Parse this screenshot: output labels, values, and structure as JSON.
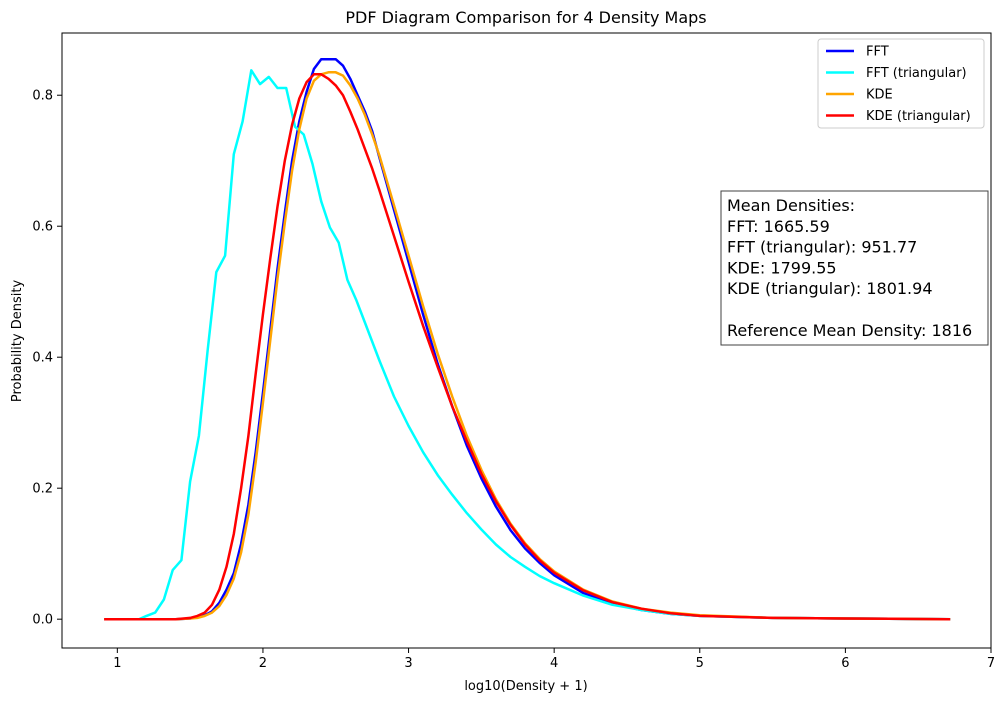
{
  "chart_data": {
    "type": "line",
    "title": "PDF Diagram Comparison for 4 Density Maps",
    "xlabel": "log10(Density + 1)",
    "ylabel": "Probability Density",
    "xlim": [
      0.62,
      7.0
    ],
    "ylim": [
      -0.044,
      0.895
    ],
    "xticks": [
      1,
      2,
      3,
      4,
      5,
      6,
      7
    ],
    "yticks": [
      0.0,
      0.2,
      0.4,
      0.6,
      0.8
    ],
    "ytick_labels": [
      "0.0",
      "0.2",
      "0.4",
      "0.6",
      "0.8"
    ],
    "grid": false,
    "legend_position": "top-right",
    "series": [
      {
        "name": "FFT",
        "color": "#0000ff",
        "x": [
          0.91,
          1.2,
          1.4,
          1.5,
          1.55,
          1.6,
          1.65,
          1.7,
          1.75,
          1.8,
          1.85,
          1.9,
          1.95,
          2.0,
          2.05,
          2.1,
          2.15,
          2.2,
          2.25,
          2.3,
          2.35,
          2.4,
          2.45,
          2.5,
          2.55,
          2.6,
          2.65,
          2.7,
          2.75,
          2.8,
          2.9,
          3.0,
          3.1,
          3.2,
          3.3,
          3.4,
          3.5,
          3.6,
          3.7,
          3.8,
          3.9,
          4.0,
          4.2,
          4.4,
          4.6,
          4.8,
          5.0,
          5.5,
          6.0,
          6.72
        ],
        "y": [
          0.0,
          0.0,
          0.0,
          0.001,
          0.003,
          0.006,
          0.012,
          0.025,
          0.045,
          0.07,
          0.115,
          0.175,
          0.255,
          0.345,
          0.44,
          0.535,
          0.62,
          0.7,
          0.76,
          0.805,
          0.84,
          0.855,
          0.855,
          0.855,
          0.845,
          0.825,
          0.8,
          0.775,
          0.745,
          0.705,
          0.625,
          0.545,
          0.465,
          0.39,
          0.325,
          0.265,
          0.215,
          0.172,
          0.136,
          0.108,
          0.086,
          0.067,
          0.04,
          0.024,
          0.014,
          0.008,
          0.005,
          0.002,
          0.001,
          0.0
        ]
      },
      {
        "name": "FFT (triangular)",
        "color": "#00ffff",
        "x": [
          1.15,
          1.2,
          1.26,
          1.32,
          1.38,
          1.44,
          1.5,
          1.56,
          1.62,
          1.68,
          1.74,
          1.8,
          1.86,
          1.92,
          1.98,
          2.04,
          2.1,
          2.16,
          2.22,
          2.28,
          2.34,
          2.4,
          2.46,
          2.52,
          2.58,
          2.64,
          2.7,
          2.8,
          2.9,
          3.0,
          3.1,
          3.2,
          3.3,
          3.4,
          3.5,
          3.6,
          3.7,
          3.8,
          3.9,
          4.0,
          4.2,
          4.4,
          4.6,
          4.8,
          5.0,
          5.5,
          6.0,
          6.72
        ],
        "y": [
          0.0,
          0.005,
          0.01,
          0.03,
          0.075,
          0.09,
          0.21,
          0.28,
          0.41,
          0.53,
          0.555,
          0.71,
          0.76,
          0.838,
          0.817,
          0.828,
          0.811,
          0.811,
          0.752,
          0.74,
          0.695,
          0.638,
          0.598,
          0.575,
          0.518,
          0.488,
          0.453,
          0.395,
          0.34,
          0.295,
          0.255,
          0.22,
          0.19,
          0.162,
          0.137,
          0.114,
          0.095,
          0.08,
          0.066,
          0.055,
          0.036,
          0.022,
          0.014,
          0.008,
          0.005,
          0.002,
          0.001,
          0.0
        ]
      },
      {
        "name": "KDE",
        "color": "#ffa500",
        "x": [
          0.91,
          1.2,
          1.4,
          1.5,
          1.55,
          1.6,
          1.65,
          1.7,
          1.75,
          1.8,
          1.85,
          1.9,
          1.95,
          2.0,
          2.05,
          2.1,
          2.15,
          2.2,
          2.25,
          2.3,
          2.35,
          2.4,
          2.45,
          2.5,
          2.55,
          2.6,
          2.65,
          2.7,
          2.75,
          2.8,
          2.9,
          3.0,
          3.1,
          3.2,
          3.3,
          3.4,
          3.5,
          3.6,
          3.7,
          3.8,
          3.9,
          4.0,
          4.2,
          4.4,
          4.6,
          4.8,
          5.0,
          5.5,
          6.0,
          6.72
        ],
        "y": [
          0.0,
          0.0,
          0.0,
          0.001,
          0.002,
          0.005,
          0.01,
          0.02,
          0.037,
          0.062,
          0.102,
          0.16,
          0.24,
          0.33,
          0.425,
          0.52,
          0.605,
          0.685,
          0.748,
          0.795,
          0.822,
          0.832,
          0.835,
          0.835,
          0.83,
          0.815,
          0.795,
          0.77,
          0.74,
          0.708,
          0.632,
          0.555,
          0.478,
          0.405,
          0.34,
          0.28,
          0.228,
          0.183,
          0.146,
          0.116,
          0.092,
          0.073,
          0.045,
          0.027,
          0.016,
          0.01,
          0.006,
          0.002,
          0.001,
          0.0
        ]
      },
      {
        "name": "KDE (triangular)",
        "color": "#ff0000",
        "x": [
          0.91,
          1.2,
          1.4,
          1.5,
          1.55,
          1.6,
          1.65,
          1.7,
          1.75,
          1.8,
          1.85,
          1.9,
          1.95,
          2.0,
          2.05,
          2.1,
          2.15,
          2.2,
          2.25,
          2.3,
          2.35,
          2.4,
          2.45,
          2.5,
          2.55,
          2.6,
          2.65,
          2.7,
          2.75,
          2.8,
          2.9,
          3.0,
          3.1,
          3.2,
          3.3,
          3.4,
          3.5,
          3.6,
          3.7,
          3.8,
          3.9,
          4.0,
          4.2,
          4.4,
          4.6,
          4.8,
          5.0,
          5.5,
          6.0,
          6.72
        ],
        "y": [
          0.0,
          0.0,
          0.0,
          0.002,
          0.005,
          0.01,
          0.022,
          0.045,
          0.08,
          0.13,
          0.2,
          0.28,
          0.375,
          0.465,
          0.55,
          0.63,
          0.7,
          0.755,
          0.795,
          0.82,
          0.832,
          0.832,
          0.825,
          0.815,
          0.8,
          0.775,
          0.748,
          0.718,
          0.688,
          0.655,
          0.585,
          0.515,
          0.448,
          0.385,
          0.325,
          0.272,
          0.222,
          0.18,
          0.144,
          0.114,
          0.09,
          0.071,
          0.044,
          0.026,
          0.016,
          0.009,
          0.005,
          0.002,
          0.001,
          0.0
        ]
      }
    ],
    "annotation": {
      "lines": [
        "Mean Densities:",
        "FFT: 1665.59",
        "FFT (triangular): 951.77",
        "KDE: 1799.55",
        "KDE (triangular): 1801.94",
        "",
        "Reference Mean Density: 1816"
      ]
    }
  }
}
